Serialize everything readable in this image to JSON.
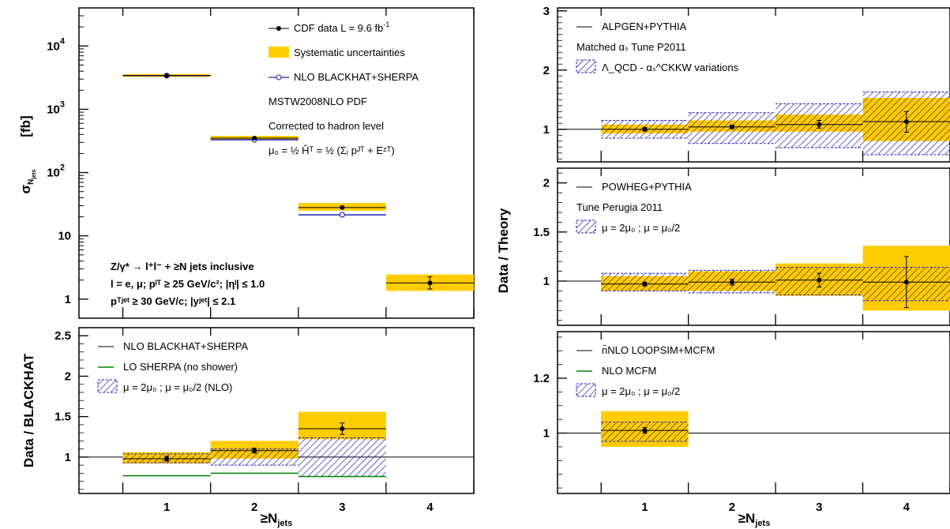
{
  "colors": {
    "data": "#000000",
    "syst": "#ffcc00",
    "syst_edge": "#e0a800",
    "nlo": "#1f22b4",
    "lo": "#008000",
    "hatch_var": "#2222bb",
    "hatch_syst": "#b07800"
  },
  "xlabel": "≥N",
  "xlabel_sub": "jets",
  "chart_data": [
    {
      "id": "top_left",
      "type": "scatter",
      "yscale": "log",
      "ylim": [
        0.5,
        40000
      ],
      "xlim": [
        0,
        4.5
      ],
      "ylabel": "σ",
      "ylabel_sub": "N",
      "ylabel_subsub": "jets",
      "ylabel_unit": "[fb]",
      "yticks": [
        {
          "v": 1,
          "t": "1"
        },
        {
          "v": 10,
          "t": "10"
        },
        {
          "v": 100,
          "t": "10",
          "sup": "2"
        },
        {
          "v": 1000,
          "t": "10",
          "sup": "3"
        },
        {
          "v": 10000,
          "t": "10",
          "sup": "4"
        }
      ],
      "legend": [
        {
          "kind": "data",
          "text": "CDF data  L =  9.6 fb",
          "sup": "-1"
        },
        {
          "kind": "syst",
          "text": "Systematic uncertainties"
        },
        {
          "kind": "nlo",
          "text": "NLO BLACKHAT+SHERPA"
        },
        {
          "kind": "none",
          "text": "MSTW2008NLO PDF"
        },
        {
          "kind": "none",
          "text": "Corrected to hadron level"
        },
        {
          "kind": "none",
          "text": "μ₀ = ½ Ĥ",
          "tail": "ᵀ = ½ (Σⱼ pᴶᵀ + Eᶻᵀ)"
        }
      ],
      "annotations": [
        "Z/γ* → l⁺l⁻ + ≥N jets inclusive",
        "l = e, μ;  pˡᵀ ≥ 25 GeV/c²; |ηˡ| ≤ 1.0",
        "pᵀʲᵉᵗ ≥ 30 GeV/c; |yʲᵉᵗ| ≤ 2.1"
      ],
      "bins": [
        {
          "n": 1,
          "data": 3400,
          "err": [
            3400,
            3400
          ],
          "syst": [
            3250,
            3600
          ],
          "nlo": 3400
        },
        {
          "n": 2,
          "data": 350,
          "err": [
            346,
            354
          ],
          "syst": [
            325,
            380
          ],
          "nlo": 330
        },
        {
          "n": 3,
          "data": 28,
          "err": [
            27.5,
            28.5
          ],
          "syst": [
            25,
            33
          ],
          "nlo": 21.5
        },
        {
          "n": 4,
          "data": 1.8,
          "err": [
            1.45,
            2.25
          ],
          "syst": [
            1.35,
            2.45
          ],
          "nlo": null
        }
      ]
    },
    {
      "id": "bottom_left",
      "type": "ratio",
      "ylim": [
        0.55,
        2.6
      ],
      "xlim": [
        0,
        4.5
      ],
      "ylabel": "Data / BLACKHAT",
      "yticks": [
        {
          "v": 1,
          "t": "1"
        },
        {
          "v": 1.5,
          "t": "1.5"
        },
        {
          "v": 2,
          "t": "2"
        },
        {
          "v": 2.5,
          "t": "2.5"
        }
      ],
      "legend": [
        {
          "kind": "line",
          "text": "NLO BLACKHAT+SHERPA"
        },
        {
          "kind": "lo",
          "text": "LO SHERPA (no shower)"
        },
        {
          "kind": "hatch",
          "text": "μ = 2μ₀ ; μ = μ₀/2 (NLO)"
        }
      ],
      "bins": [
        {
          "n": 1,
          "data": 0.98,
          "err": [
            0.95,
            1.01
          ],
          "syst": [
            0.92,
            1.06
          ],
          "var": [
            0.93,
            1.04
          ],
          "lo": 0.77
        },
        {
          "n": 2,
          "data": 1.08,
          "err": [
            1.05,
            1.11
          ],
          "syst": [
            0.98,
            1.2
          ],
          "var": [
            0.9,
            1.1
          ],
          "lo": 0.8
        },
        {
          "n": 3,
          "data": 1.35,
          "err": [
            1.28,
            1.42
          ],
          "syst": [
            1.22,
            1.56
          ],
          "var": [
            0.76,
            1.24
          ],
          "lo": 0.76
        }
      ]
    },
    {
      "id": "top_right",
      "type": "ratio",
      "ylim": [
        0.45,
        3.05
      ],
      "xlim": [
        0,
        4.5
      ],
      "ylabel": "",
      "yticks": [
        {
          "v": 1,
          "t": "1"
        },
        {
          "v": 2,
          "t": "2"
        },
        {
          "v": 3,
          "t": "3"
        }
      ],
      "legend": [
        {
          "kind": "line",
          "text": "ALPGEN+PYTHIA"
        },
        {
          "kind": "none",
          "text": "Matched αₛ Tune P2011"
        },
        {
          "kind": "hatch",
          "text": "Λ_QCD - αₛ^CKKW variations"
        }
      ],
      "bins": [
        {
          "n": 1,
          "data": 1.0,
          "err": [
            0.97,
            1.03
          ],
          "syst": [
            0.93,
            1.08
          ],
          "var": [
            0.85,
            1.15
          ]
        },
        {
          "n": 2,
          "data": 1.04,
          "err": [
            1.01,
            1.07
          ],
          "syst": [
            0.96,
            1.15
          ],
          "var": [
            0.76,
            1.28
          ]
        },
        {
          "n": 3,
          "data": 1.08,
          "err": [
            1.02,
            1.15
          ],
          "syst": [
            0.96,
            1.25
          ],
          "var": [
            0.69,
            1.43
          ]
        },
        {
          "n": 4,
          "data": 1.13,
          "err": [
            0.95,
            1.3
          ],
          "syst": [
            0.8,
            1.53
          ],
          "var": [
            0.57,
            1.63
          ]
        }
      ]
    },
    {
      "id": "mid_right",
      "type": "ratio",
      "ylim": [
        0.55,
        2.15
      ],
      "xlim": [
        0,
        4.5
      ],
      "ylabel": "Data / Theory",
      "yticks": [
        {
          "v": 1,
          "t": "1"
        },
        {
          "v": 1.5,
          "t": "1.5"
        },
        {
          "v": 2,
          "t": "2"
        }
      ],
      "legend": [
        {
          "kind": "line",
          "text": "POWHEG+PYTHIA"
        },
        {
          "kind": "none",
          "text": "Tune Perugia 2011"
        },
        {
          "kind": "hatch",
          "text": "μ = 2μ₀ ; μ = μ₀/2"
        }
      ],
      "bins": [
        {
          "n": 1,
          "data": 0.97,
          "err": [
            0.95,
            0.99
          ],
          "syst": [
            0.9,
            1.05
          ],
          "var": [
            0.9,
            1.08
          ]
        },
        {
          "n": 2,
          "data": 0.99,
          "err": [
            0.96,
            1.02
          ],
          "syst": [
            0.9,
            1.1
          ],
          "var": [
            0.88,
            1.11
          ]
        },
        {
          "n": 3,
          "data": 1.01,
          "err": [
            0.94,
            1.08
          ],
          "syst": [
            0.85,
            1.18
          ],
          "var": [
            0.86,
            1.14
          ]
        },
        {
          "n": 4,
          "data": 0.99,
          "err": [
            0.73,
            1.25
          ],
          "syst": [
            0.7,
            1.36
          ],
          "var": [
            0.8,
            1.14
          ]
        }
      ]
    },
    {
      "id": "bottom_right",
      "type": "ratio",
      "ylim": [
        0.78,
        1.37
      ],
      "xlim": [
        0,
        4.5
      ],
      "ylabel": "",
      "yticks": [
        {
          "v": 1,
          "t": "1"
        },
        {
          "v": 1.2,
          "t": "1.2"
        }
      ],
      "legend": [
        {
          "kind": "line",
          "text": "n̄NLO LOOPSIM+MCFM"
        },
        {
          "kind": "lo",
          "text": "NLO MCFM"
        },
        {
          "kind": "hatch",
          "text": "μ = 2μ₀ ; μ = μ₀/2"
        }
      ],
      "bins": [
        {
          "n": 1,
          "data": 1.01,
          "err": [
            1.0,
            1.02
          ],
          "syst": [
            0.95,
            1.08
          ],
          "var": [
            0.97,
            1.04
          ]
        }
      ]
    }
  ]
}
